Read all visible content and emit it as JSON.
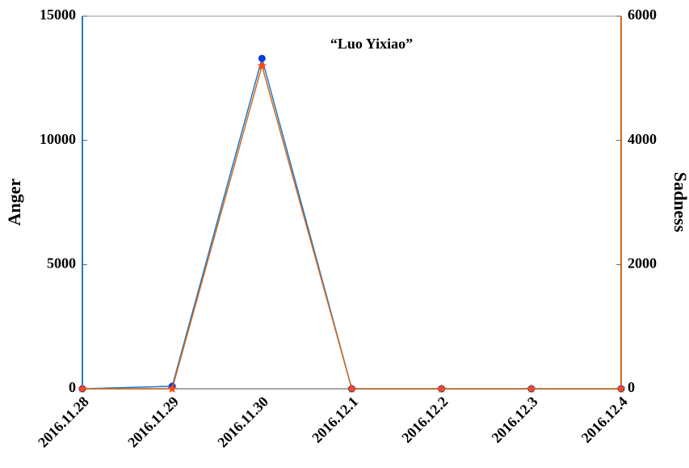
{
  "chart_data": {
    "type": "line",
    "title": "“Luo Yixiao”",
    "categories": [
      "2016.11.28",
      "2016.11.29",
      "2016.11.30",
      "2016.12.1",
      "2016.12.2",
      "2016.12.3",
      "2016.12.4"
    ],
    "series": [
      {
        "name": "Anger",
        "color": "#1f77c4",
        "marker": "circle",
        "marker_color": "#0a3cd8",
        "values": [
          0,
          100,
          13300,
          0,
          0,
          0,
          0
        ]
      },
      {
        "name": "Sadness",
        "color": "#d2691e",
        "marker": "star",
        "marker_color": "#ff4a10",
        "axis": "y2",
        "values": [
          0,
          0,
          5200,
          0,
          0,
          0,
          0
        ]
      }
    ],
    "ylabel": "Anger",
    "y2label": "Sadness",
    "ylim": [
      0,
      15000
    ],
    "yticks": [
      0,
      5000,
      10000,
      15000
    ],
    "y2lim": [
      0,
      6000
    ],
    "y2ticks": [
      0,
      2000,
      4000,
      6000
    ]
  }
}
